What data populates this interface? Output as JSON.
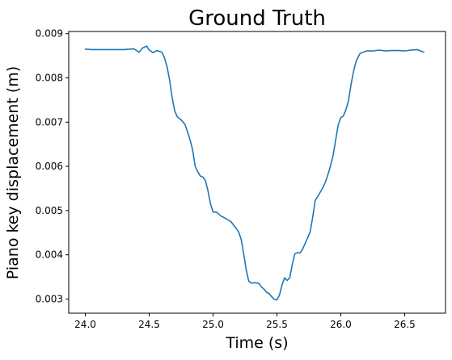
{
  "chart_data": {
    "type": "line",
    "title": "Ground Truth",
    "xlabel": "Time (s)",
    "ylabel": "Piano key displacement (m)",
    "xlim": [
      23.87,
      26.82
    ],
    "ylim": [
      0.00268,
      0.00905
    ],
    "xticks": [
      24.0,
      24.5,
      25.0,
      25.5,
      26.0,
      26.5
    ],
    "xtick_labels": [
      "24.0",
      "24.5",
      "25.0",
      "25.5",
      "26.0",
      "26.5"
    ],
    "yticks": [
      0.003,
      0.004,
      0.005,
      0.006,
      0.007,
      0.008,
      0.009
    ],
    "ytick_labels": [
      "0.003",
      "0.004",
      "0.005",
      "0.006",
      "0.007",
      "0.008",
      "0.009"
    ],
    "grid": false,
    "legend": "none",
    "series": [
      {
        "color": "#1f77b4",
        "x": [
          24.0,
          24.05,
          24.1,
          24.15,
          24.2,
          24.25,
          24.3,
          24.35,
          24.38,
          24.42,
          24.45,
          24.48,
          24.5,
          24.53,
          24.56,
          24.6,
          24.62,
          24.64,
          24.66,
          24.68,
          24.7,
          24.72,
          24.75,
          24.78,
          24.8,
          24.82,
          24.84,
          24.86,
          24.88,
          24.9,
          24.92,
          24.94,
          24.96,
          24.98,
          25.0,
          25.03,
          25.06,
          25.1,
          25.14,
          25.17,
          25.2,
          25.22,
          25.24,
          25.26,
          25.28,
          25.3,
          25.33,
          25.36,
          25.38,
          25.4,
          25.42,
          25.44,
          25.46,
          25.48,
          25.5,
          25.52,
          25.54,
          25.56,
          25.58,
          25.6,
          25.62,
          25.64,
          25.66,
          25.68,
          25.7,
          25.72,
          25.74,
          25.76,
          25.78,
          25.8,
          25.83,
          25.86,
          25.88,
          25.9,
          25.92,
          25.94,
          25.96,
          25.98,
          26.0,
          26.02,
          26.04,
          26.06,
          26.08,
          26.1,
          26.12,
          26.15,
          26.2,
          26.25,
          26.3,
          26.35,
          26.4,
          26.45,
          26.5,
          26.55,
          26.6,
          26.65
        ],
        "y": [
          0.00865,
          0.00864,
          0.00864,
          0.00864,
          0.00864,
          0.00864,
          0.00864,
          0.00865,
          0.00866,
          0.00858,
          0.00868,
          0.00872,
          0.00863,
          0.00857,
          0.00862,
          0.00858,
          0.00845,
          0.00825,
          0.00795,
          0.00755,
          0.00725,
          0.00712,
          0.00705,
          0.00695,
          0.00678,
          0.0066,
          0.00637,
          0.006,
          0.00588,
          0.00578,
          0.00576,
          0.00568,
          0.00545,
          0.00515,
          0.00497,
          0.00496,
          0.00488,
          0.00482,
          0.00475,
          0.00464,
          0.00452,
          0.00435,
          0.00402,
          0.00365,
          0.0034,
          0.00336,
          0.00337,
          0.00335,
          0.00327,
          0.00322,
          0.00315,
          0.00312,
          0.00305,
          0.00299,
          0.00298,
          0.00309,
          0.00332,
          0.00348,
          0.00342,
          0.00348,
          0.00378,
          0.00402,
          0.00405,
          0.00404,
          0.00412,
          0.00425,
          0.00438,
          0.00452,
          0.00485,
          0.00523,
          0.00537,
          0.00552,
          0.00565,
          0.00582,
          0.00602,
          0.00625,
          0.0066,
          0.00694,
          0.0071,
          0.00714,
          0.00728,
          0.00748,
          0.00785,
          0.00815,
          0.00838,
          0.00855,
          0.00861,
          0.00861,
          0.00863,
          0.00861,
          0.00862,
          0.00862,
          0.00861,
          0.00863,
          0.00864,
          0.00858
        ]
      }
    ]
  }
}
